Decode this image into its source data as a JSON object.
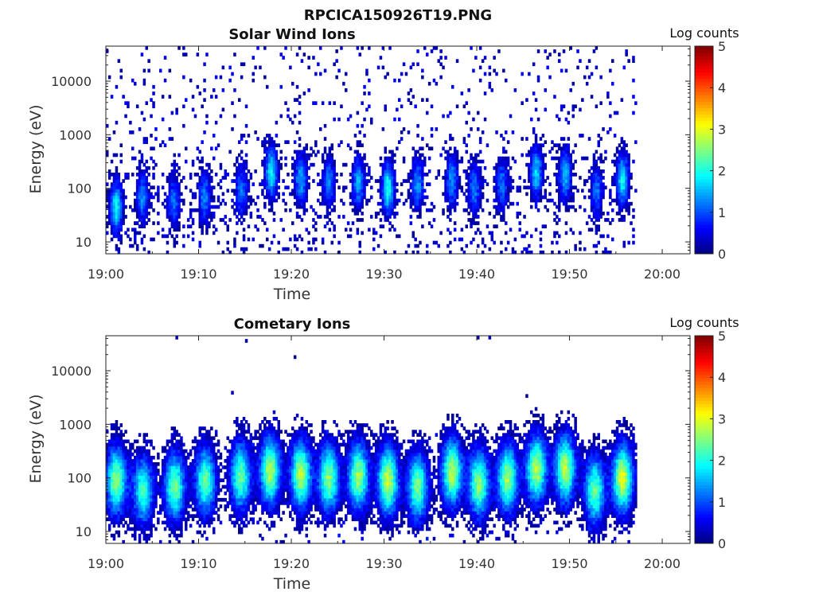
{
  "figure": {
    "title": "RPCICA150926T19.PNG"
  },
  "chart_data": [
    {
      "type": "heatmap",
      "title": "Solar Wind Ions",
      "xlabel": "Time",
      "ylabel": "Energy (eV)",
      "x_ticks": [
        "19:00",
        "19:10",
        "19:20",
        "19:30",
        "19:40",
        "19:50",
        "20:00"
      ],
      "y_ticks": [
        "10",
        "100",
        "1000",
        "10000"
      ],
      "y_scale": "log",
      "xlim_minutes": [
        0,
        63
      ],
      "ylim_eV": [
        6,
        45000
      ],
      "data_end_minutes": 57.2,
      "colorbar": {
        "label": "Log counts",
        "ticks": [
          "0",
          "1",
          "2",
          "3",
          "4",
          "5"
        ],
        "range": [
          0,
          5
        ]
      },
      "bursts": [
        {
          "t": 1.0,
          "e": 45,
          "amp": 1.9
        },
        {
          "t": 3.8,
          "e": 70,
          "amp": 1.3
        },
        {
          "t": 7.2,
          "e": 60,
          "amp": 1.2
        },
        {
          "t": 10.5,
          "e": 70,
          "amp": 1.3
        },
        {
          "t": 14.5,
          "e": 90,
          "amp": 1.2
        },
        {
          "t": 17.7,
          "e": 200,
          "amp": 1.9
        },
        {
          "t": 20.9,
          "e": 150,
          "amp": 1.5
        },
        {
          "t": 23.9,
          "e": 130,
          "amp": 1.3
        },
        {
          "t": 27.1,
          "e": 130,
          "amp": 1.5
        },
        {
          "t": 30.3,
          "e": 100,
          "amp": 2.0
        },
        {
          "t": 33.5,
          "e": 120,
          "amp": 1.4
        },
        {
          "t": 37.2,
          "e": 140,
          "amp": 1.4
        },
        {
          "t": 39.6,
          "e": 100,
          "amp": 1.3
        },
        {
          "t": 42.6,
          "e": 120,
          "amp": 1.2
        },
        {
          "t": 46.3,
          "e": 200,
          "amp": 1.7
        },
        {
          "t": 49.4,
          "e": 180,
          "amp": 1.6
        },
        {
          "t": 52.8,
          "e": 90,
          "amp": 1.2
        },
        {
          "t": 55.6,
          "e": 150,
          "amp": 1.9
        }
      ]
    },
    {
      "type": "heatmap",
      "title": "Cometary Ions",
      "xlabel": "Time",
      "ylabel": "Energy (eV)",
      "x_ticks": [
        "19:00",
        "19:10",
        "19:20",
        "19:30",
        "19:40",
        "19:50",
        "20:00"
      ],
      "y_ticks": [
        "10",
        "100",
        "1000",
        "10000"
      ],
      "y_scale": "log",
      "xlim_minutes": [
        0,
        63
      ],
      "ylim_eV": [
        6,
        45000
      ],
      "data_end_minutes": 57.2,
      "colorbar": {
        "label": "Log counts",
        "ticks": [
          "0",
          "1",
          "2",
          "3",
          "4",
          "5"
        ],
        "range": [
          0,
          5
        ]
      },
      "bursts": [
        {
          "t": 1.0,
          "e": 90,
          "amp": 2.6
        },
        {
          "t": 3.9,
          "e": 60,
          "amp": 2.2
        },
        {
          "t": 7.3,
          "e": 70,
          "amp": 2.5
        },
        {
          "t": 10.6,
          "e": 90,
          "amp": 2.4
        },
        {
          "t": 14.4,
          "e": 110,
          "amp": 2.4
        },
        {
          "t": 17.6,
          "e": 140,
          "amp": 2.8
        },
        {
          "t": 20.9,
          "e": 120,
          "amp": 2.8
        },
        {
          "t": 23.9,
          "e": 100,
          "amp": 2.6
        },
        {
          "t": 27.1,
          "e": 110,
          "amp": 2.7
        },
        {
          "t": 30.3,
          "e": 90,
          "amp": 2.9
        },
        {
          "t": 33.5,
          "e": 70,
          "amp": 2.5
        },
        {
          "t": 37.2,
          "e": 130,
          "amp": 2.8
        },
        {
          "t": 40.1,
          "e": 80,
          "amp": 2.6
        },
        {
          "t": 43.2,
          "e": 100,
          "amp": 2.7
        },
        {
          "t": 46.3,
          "e": 150,
          "amp": 2.8
        },
        {
          "t": 49.4,
          "e": 150,
          "amp": 2.8
        },
        {
          "t": 52.6,
          "e": 60,
          "amp": 2.4
        },
        {
          "t": 55.6,
          "e": 100,
          "amp": 3.0
        }
      ]
    }
  ]
}
